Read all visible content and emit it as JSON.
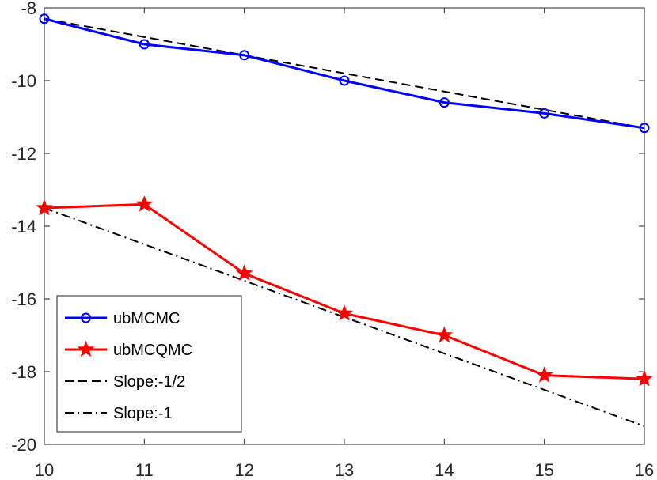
{
  "chart_data": {
    "type": "line",
    "title": "",
    "xlabel": "",
    "ylabel": "",
    "xlim": [
      10,
      16
    ],
    "ylim": [
      -20,
      -8
    ],
    "x_ticks": [
      10,
      11,
      12,
      13,
      14,
      15,
      16
    ],
    "y_ticks": [
      -20,
      -18,
      -16,
      -14,
      -12,
      -10,
      -8
    ],
    "x_tick_labels": [
      "10",
      "11",
      "12",
      "13",
      "14",
      "15",
      "16"
    ],
    "y_tick_labels": [
      "-20",
      "-18",
      "-16",
      "-14",
      "-12",
      "-10",
      "-8"
    ],
    "grid": false,
    "legend_position": "bottom-left",
    "series": [
      {
        "name": "ubMCMC",
        "color": "#0000ff",
        "marker": "circle",
        "line_style": "solid",
        "x": [
          10,
          11,
          12,
          13,
          14,
          15,
          16
        ],
        "y": [
          -8.3,
          -9.0,
          -9.3,
          -10.0,
          -10.6,
          -10.9,
          -11.3
        ]
      },
      {
        "name": "ubMCQMC",
        "color": "#ff0000",
        "marker": "star",
        "line_style": "solid",
        "x": [
          10,
          11,
          12,
          13,
          14,
          15,
          16
        ],
        "y": [
          -13.5,
          -13.4,
          -15.3,
          -16.4,
          -17.0,
          -18.1,
          -18.2
        ]
      },
      {
        "name": "Slope:-1/2",
        "color": "#000000",
        "marker": "none",
        "line_style": "dashed",
        "x": [
          10,
          16
        ],
        "y": [
          -8.3,
          -11.3
        ]
      },
      {
        "name": "Slope:-1",
        "color": "#000000",
        "marker": "none",
        "line_style": "dashdot",
        "x": [
          10,
          16
        ],
        "y": [
          -13.5,
          -19.5
        ]
      }
    ]
  }
}
